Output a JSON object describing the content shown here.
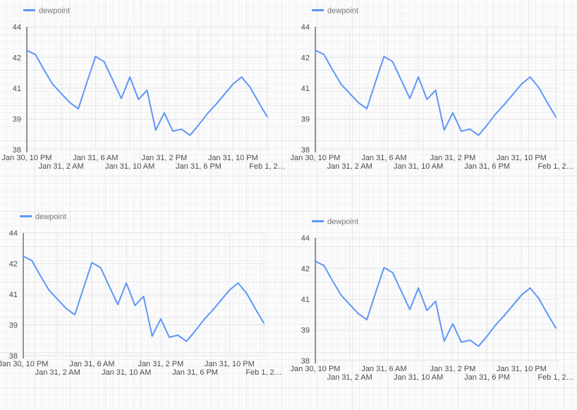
{
  "page": {
    "background_color": "#fbfbfc",
    "grid_minor_color": "#f1f0f2",
    "grid_major_color": "#e7e6e9"
  },
  "colors": {
    "line": "#5e97f6",
    "axis_baseline": "#808080",
    "chart_gridline": "#e8e7e9",
    "tick_text": "#4c4c4c",
    "legend_text": "#757575"
  },
  "chart_data": [
    {
      "id": "top-left",
      "type": "line",
      "legend": {
        "label": "dewpoint",
        "position": "top-left"
      },
      "x_axis": {
        "tick_labels": [
          "Jan 30, 10 PM",
          "Jan 31, 2 AM",
          "Jan 31, 6 AM",
          "Jan 31, 10 AM",
          "Jan 31, 2 PM",
          "Jan 31, 6 PM",
          "Jan 31, 10 PM",
          "Feb 1, 2…"
        ],
        "tick_interval_hours": 4,
        "point_interval_hours": 1,
        "span_hours": 28
      },
      "y_axis": {
        "min": 38,
        "max": 44,
        "tick_labels": [
          "44",
          "42",
          "41",
          "39",
          "38"
        ]
      },
      "series": [
        {
          "name": "dewpoint",
          "values": [
            42.85,
            42.65,
            41.9,
            41.2,
            40.75,
            40.3,
            40.0,
            41.3,
            42.55,
            42.3,
            41.4,
            40.5,
            41.55,
            40.45,
            40.9,
            38.95,
            39.8,
            38.9,
            39.0,
            38.7,
            39.2,
            39.75,
            40.2,
            40.7,
            41.2,
            41.55,
            41.05,
            40.3,
            39.6
          ]
        }
      ],
      "grid": true
    },
    {
      "id": "top-right",
      "type": "line",
      "legend": {
        "label": "dewpoint",
        "position": "top-left"
      },
      "x_axis": {
        "tick_labels": [
          "Jan 30, 10 PM",
          "Jan 31, 2 AM",
          "Jan 31, 6 AM",
          "Jan 31, 10 AM",
          "Jan 31, 2 PM",
          "Jan 31, 6 PM",
          "Jan 31, 10 PM",
          "Feb 1, 2…"
        ],
        "tick_interval_hours": 4,
        "point_interval_hours": 1,
        "span_hours": 28
      },
      "y_axis": {
        "min": 38,
        "max": 44,
        "tick_labels": [
          "44",
          "42",
          "41",
          "39",
          "38"
        ]
      },
      "series": [
        {
          "name": "dewpoint",
          "values": [
            42.85,
            42.65,
            41.9,
            41.2,
            40.75,
            40.3,
            40.0,
            41.3,
            42.55,
            42.3,
            41.4,
            40.5,
            41.55,
            40.45,
            40.9,
            38.95,
            39.8,
            38.9,
            39.0,
            38.7,
            39.2,
            39.75,
            40.2,
            40.7,
            41.2,
            41.55,
            41.05,
            40.3,
            39.6
          ]
        }
      ],
      "grid": true
    },
    {
      "id": "bottom-left",
      "type": "line",
      "legend": {
        "label": "dewpoint",
        "position": "top-left"
      },
      "x_axis": {
        "tick_labels": [
          "Jan 30, 10 PM",
          "Jan 31, 2 AM",
          "Jan 31, 6 AM",
          "Jan 31, 10 AM",
          "Jan 31, 2 PM",
          "Jan 31, 6 PM",
          "Jan 31, 10 PM",
          "Feb 1, 2…"
        ],
        "tick_interval_hours": 4,
        "point_interval_hours": 1,
        "span_hours": 28
      },
      "y_axis": {
        "min": 38,
        "max": 44,
        "tick_labels": [
          "44",
          "42",
          "41",
          "39",
          "38"
        ]
      },
      "series": [
        {
          "name": "dewpoint",
          "values": [
            42.85,
            42.65,
            41.9,
            41.2,
            40.75,
            40.3,
            40.0,
            41.3,
            42.55,
            42.3,
            41.4,
            40.5,
            41.55,
            40.45,
            40.9,
            38.95,
            39.8,
            38.9,
            39.0,
            38.7,
            39.2,
            39.75,
            40.2,
            40.7,
            41.2,
            41.55,
            41.05,
            40.3,
            39.6
          ]
        }
      ],
      "grid": true
    },
    {
      "id": "bottom-right",
      "type": "line",
      "legend": {
        "label": "dewpoint",
        "position": "top-left"
      },
      "x_axis": {
        "tick_labels": [
          "Jan 30, 10 PM",
          "Jan 31, 2 AM",
          "Jan 31, 6 AM",
          "Jan 31, 10 AM",
          "Jan 31, 2 PM",
          "Jan 31, 6 PM",
          "Jan 31, 10 PM",
          "Feb 1, 2…"
        ],
        "tick_interval_hours": 4,
        "point_interval_hours": 1,
        "span_hours": 28
      },
      "y_axis": {
        "min": 38,
        "max": 44,
        "tick_labels": [
          "44",
          "42",
          "41",
          "39",
          "38"
        ]
      },
      "series": [
        {
          "name": "dewpoint",
          "values": [
            42.85,
            42.65,
            41.9,
            41.2,
            40.75,
            40.3,
            40.0,
            41.3,
            42.55,
            42.3,
            41.4,
            40.5,
            41.55,
            40.45,
            40.9,
            38.95,
            39.8,
            38.9,
            39.0,
            38.7,
            39.2,
            39.75,
            40.2,
            40.7,
            41.2,
            41.55,
            41.05,
            40.3,
            39.6
          ]
        }
      ],
      "grid": true
    }
  ]
}
